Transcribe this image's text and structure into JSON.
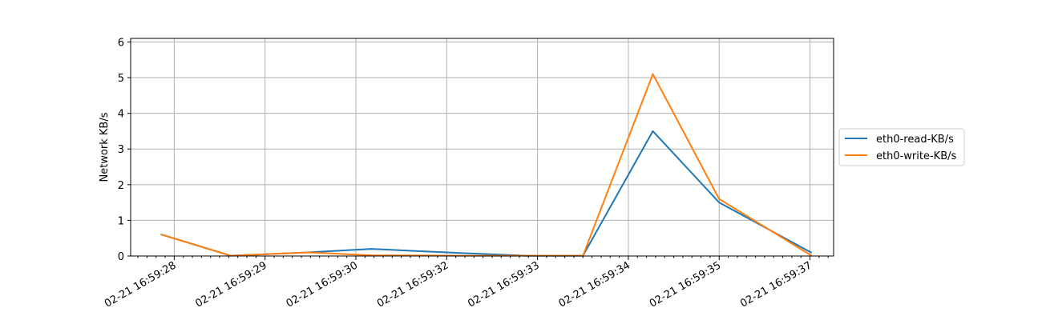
{
  "chart_data": {
    "type": "line",
    "title": "",
    "xlabel": "",
    "ylabel": "Network KB/s",
    "ylim": [
      0,
      6.1
    ],
    "yticks": [
      0,
      1,
      2,
      3,
      4,
      5,
      6
    ],
    "xlim": [
      -0.48,
      7.26
    ],
    "xtick_positions": [
      0,
      1,
      2,
      3,
      4,
      5,
      6,
      7
    ],
    "xticks": [
      "02-21 16:59:28",
      "02-21 16:59:29",
      "02-21 16:59:30",
      "02-21 16:59:32",
      "02-21 16:59:33",
      "02-21 16:59:34",
      "02-21 16:59:35",
      "02-21 16:59:37"
    ],
    "minor_ticks_per_interval": 10,
    "grid": true,
    "legend_position": "outside-right",
    "series": [
      {
        "name": "eth0-read-KB/s",
        "color": "#1f77b4",
        "points": [
          [
            -0.14,
            0.6
          ],
          [
            0.62,
            0.01
          ],
          [
            1.47,
            0.1
          ],
          [
            2.17,
            0.2
          ],
          [
            3.17,
            0.08
          ],
          [
            3.87,
            0.01
          ],
          [
            4.5,
            0.01
          ],
          [
            5.27,
            3.5
          ],
          [
            6.0,
            1.5
          ],
          [
            7.01,
            0.1
          ]
        ]
      },
      {
        "name": "eth0-write-KB/s",
        "color": "#ff7f0e",
        "points": [
          [
            -0.14,
            0.6
          ],
          [
            0.62,
            0.01
          ],
          [
            1.47,
            0.1
          ],
          [
            2.17,
            0.02
          ],
          [
            3.17,
            0.01
          ],
          [
            3.87,
            0.01
          ],
          [
            4.5,
            0.01
          ],
          [
            5.27,
            5.1
          ],
          [
            6.0,
            1.6
          ],
          [
            7.01,
            0.02
          ]
        ]
      }
    ]
  }
}
